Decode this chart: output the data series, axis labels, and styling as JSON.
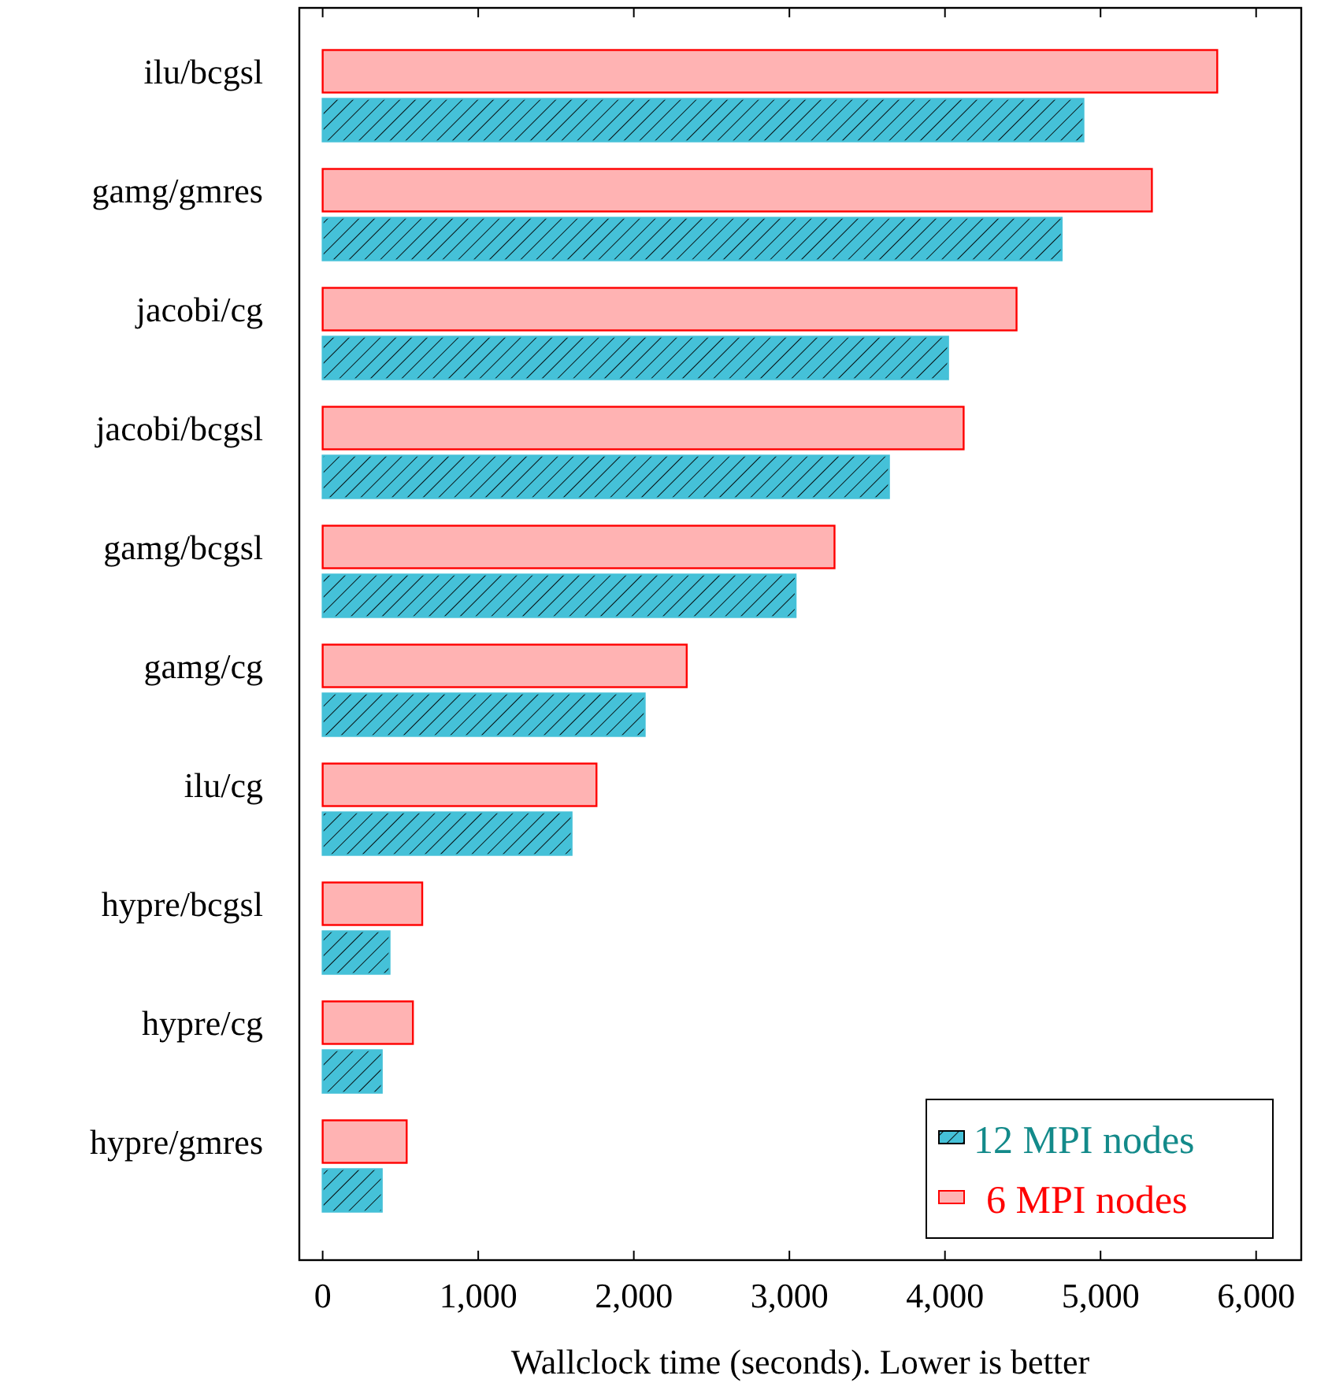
{
  "chart_data": {
    "type": "bar",
    "orientation": "horizontal",
    "xlabel": "Wallclock time (seconds). Lower is better",
    "categories": [
      "ilu/bcgsl",
      "gamg/gmres",
      "jacobi/cg",
      "jacobi/bcgsl",
      "gamg/bcgsl",
      "gamg/cg",
      "ilu/cg",
      "hypre/bcgsl",
      "hypre/cg",
      "hypre/gmres"
    ],
    "series": [
      {
        "name": "12 MPI nodes",
        "color": "#45c1d8",
        "values": [
          4890,
          4750,
          4020,
          3640,
          3040,
          2070,
          1600,
          430,
          380,
          380
        ]
      },
      {
        "name": "6 MPI nodes",
        "color": "#ffb3b3",
        "values": [
          5750,
          5330,
          4460,
          4120,
          3290,
          2340,
          1760,
          640,
          580,
          540
        ]
      }
    ],
    "xlim": [
      -150,
      6290
    ],
    "xticks": [
      0,
      {
        "value": 1000,
        "label": "1,000"
      },
      {
        "value": 2000,
        "label": "2,000"
      },
      {
        "value": 3000,
        "label": "3,000"
      },
      {
        "value": 4000,
        "label": "4,000"
      },
      {
        "value": 5000,
        "label": "5,000"
      },
      {
        "value": 6000,
        "label": "6,000"
      }
    ],
    "grid": false,
    "legend": "bottom right"
  }
}
